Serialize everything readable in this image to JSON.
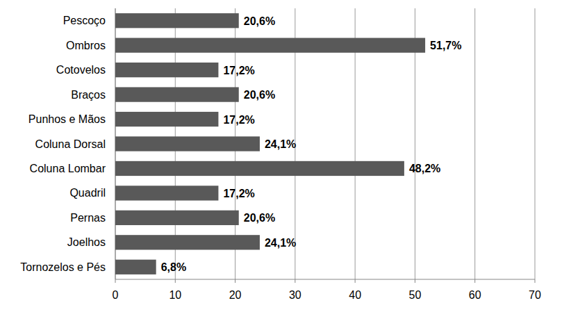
{
  "chart_data": {
    "type": "bar",
    "orientation": "horizontal",
    "categories": [
      "Pescoço",
      "Ombros",
      "Cotovelos",
      "Braços",
      "Punhos e Mãos",
      "Coluna Dorsal",
      "Coluna Lombar",
      "Quadril",
      "Pernas",
      "Joelhos",
      "Tornozelos e Pés"
    ],
    "values": [
      20.6,
      51.7,
      17.2,
      20.6,
      17.2,
      24.1,
      48.2,
      17.2,
      20.6,
      24.1,
      6.8
    ],
    "value_labels": [
      "20,6%",
      "51,7%",
      "17,2%",
      "20,6%",
      "17,2%",
      "24,1%",
      "48,2%",
      "17,2%",
      "20,6%",
      "24,1%",
      "6,8%"
    ],
    "color": "#595959",
    "xlim": [
      0,
      70
    ],
    "xticks": [
      0,
      10,
      20,
      30,
      40,
      50,
      60,
      70
    ],
    "grid": true,
    "data_labels": true
  }
}
